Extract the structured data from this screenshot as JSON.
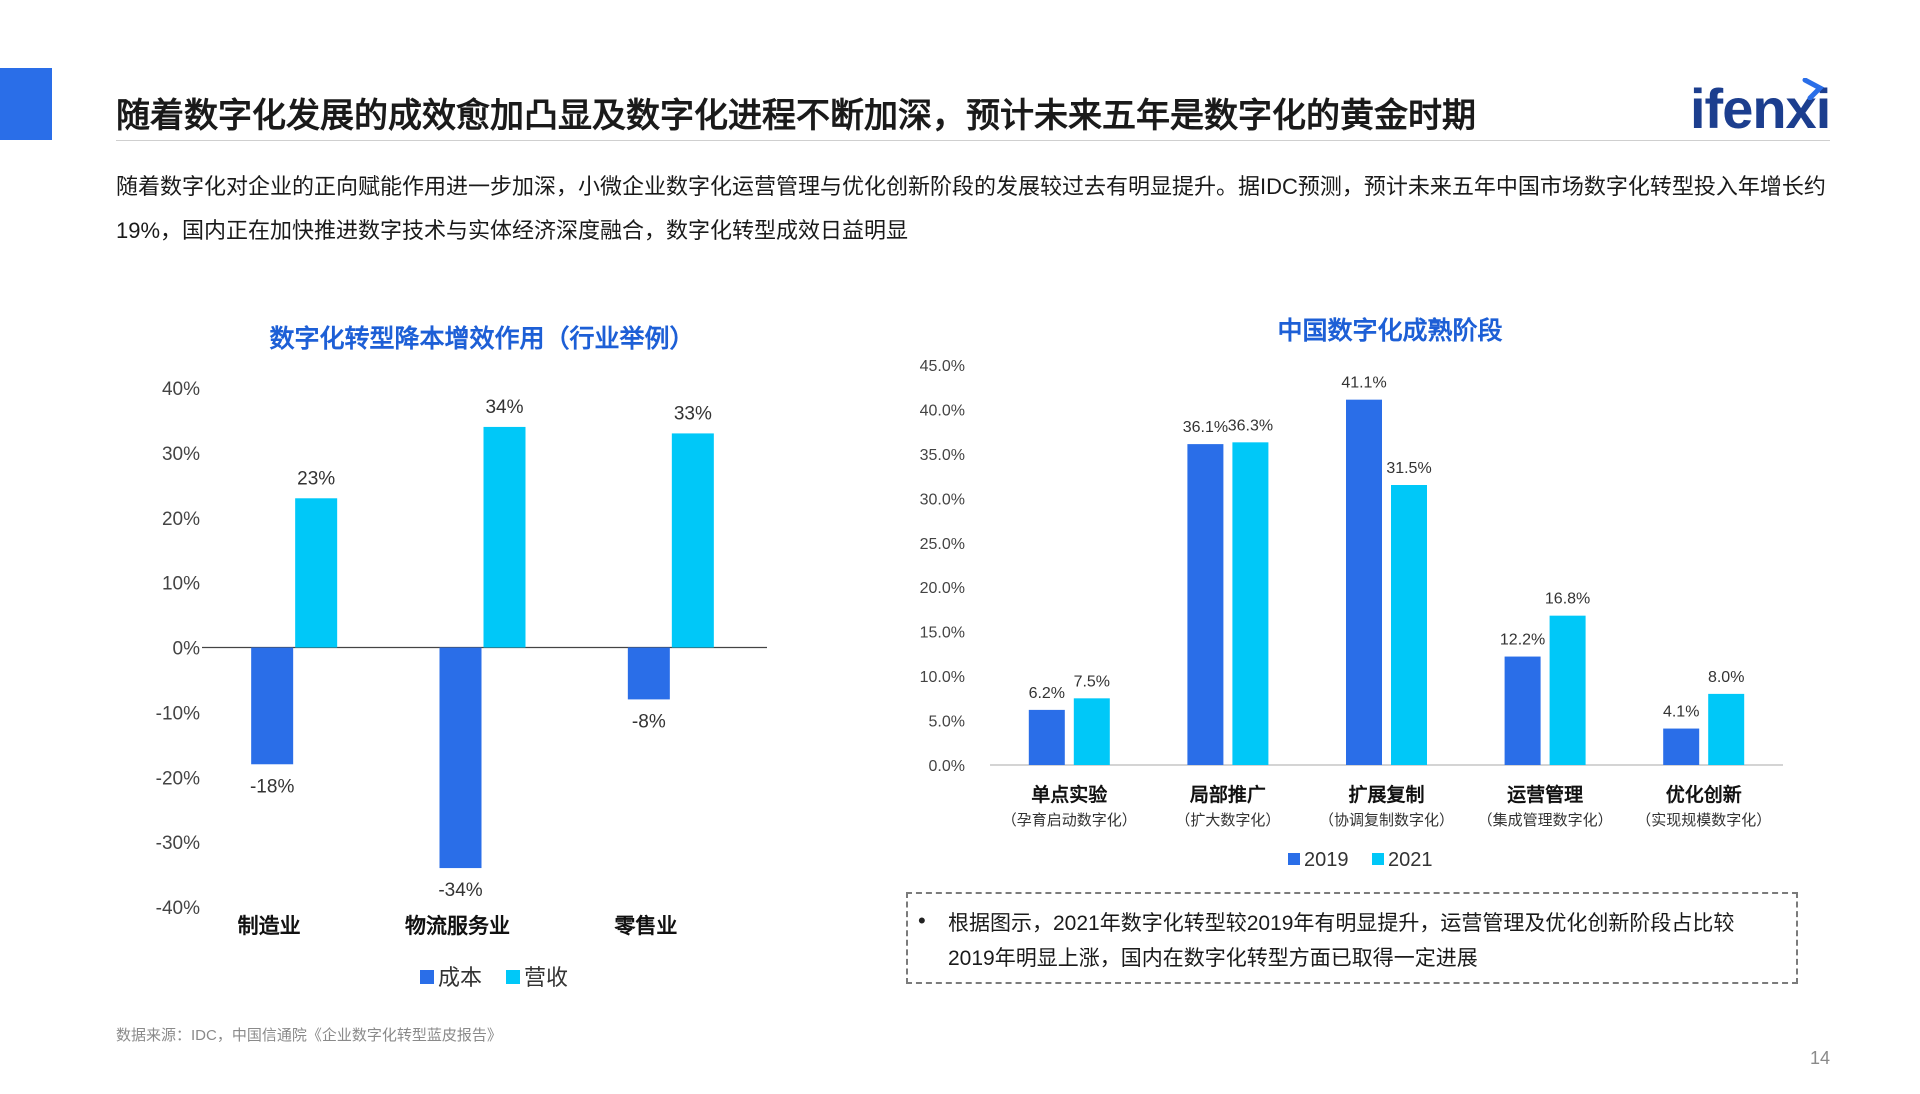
{
  "header": {
    "title": "随着数字化发展的成效愈加凸显及数字化进程不断加深，预计未来五年是数字化的黄金时期",
    "logo": "ifenxi"
  },
  "intro": "随着数字化对企业的正向赋能作用进一步加深，小微企业数字化运营管理与优化创新阶段的发展较过去有明显提升。据IDC预测，预计未来五年中国市场数字化转型投入年增长约19%，国内正在加快推进数字技术与实体经济深度融合，数字化转型成效日益明显",
  "colors": {
    "accent": "#2a6ee8",
    "series_dark": "#2a6ee8",
    "series_light": "#00c8f8",
    "title_blue": "#1d5fd6"
  },
  "chart_data": [
    {
      "type": "bar",
      "title": "数字化转型降本增效作用（行业举例）",
      "categories": [
        "制造业",
        "物流服务业",
        "零售业"
      ],
      "series": [
        {
          "name": "成本",
          "values": [
            -18,
            -34,
            -8
          ],
          "labels": [
            "-18%",
            "-34%",
            "-8%"
          ]
        },
        {
          "name": "营收",
          "values": [
            23,
            34,
            33
          ],
          "labels": [
            "23%",
            "34%",
            "33%"
          ]
        }
      ],
      "yticks": [
        "40%",
        "30%",
        "20%",
        "10%",
        "0%",
        "-10%",
        "-20%",
        "-30%",
        "-40%"
      ],
      "ylim": [
        -40,
        40
      ],
      "legend": "bottom"
    },
    {
      "type": "bar",
      "title": "中国数字化成熟阶段",
      "categories": [
        "单点实验",
        "局部推广",
        "扩展复制",
        "运营管理",
        "优化创新"
      ],
      "subcategories": [
        "（孕育启动数字化）",
        "（扩大数字化）",
        "（协调复制数字化）",
        "（集成管理数字化）",
        "（实现规模数字化）"
      ],
      "series": [
        {
          "name": "2019",
          "values": [
            6.2,
            36.1,
            41.1,
            12.2,
            4.1
          ],
          "labels": [
            "6.2%",
            "36.1%",
            "41.1%",
            "12.2%",
            "4.1%"
          ]
        },
        {
          "name": "2021",
          "values": [
            7.5,
            36.3,
            31.5,
            16.8,
            8.0
          ],
          "labels": [
            "7.5%",
            "36.3%",
            "31.5%",
            "16.8%",
            "8.0%"
          ]
        }
      ],
      "yticks": [
        "45.0%",
        "40.0%",
        "35.0%",
        "30.0%",
        "25.0%",
        "20.0%",
        "15.0%",
        "10.0%",
        "5.0%",
        "0.0%"
      ],
      "ylim": [
        0,
        45
      ],
      "legend": "bottom"
    }
  ],
  "note": {
    "bullet": "•",
    "text": "根据图示，2021年数字化转型较2019年有明显提升，运营管理及优化创新阶段占比较2019年明显上涨，国内在数字化转型方面已取得一定进展"
  },
  "footer": {
    "source": "数据来源：IDC，中国信通院《企业数字化转型蓝皮报告》",
    "page": "14"
  }
}
